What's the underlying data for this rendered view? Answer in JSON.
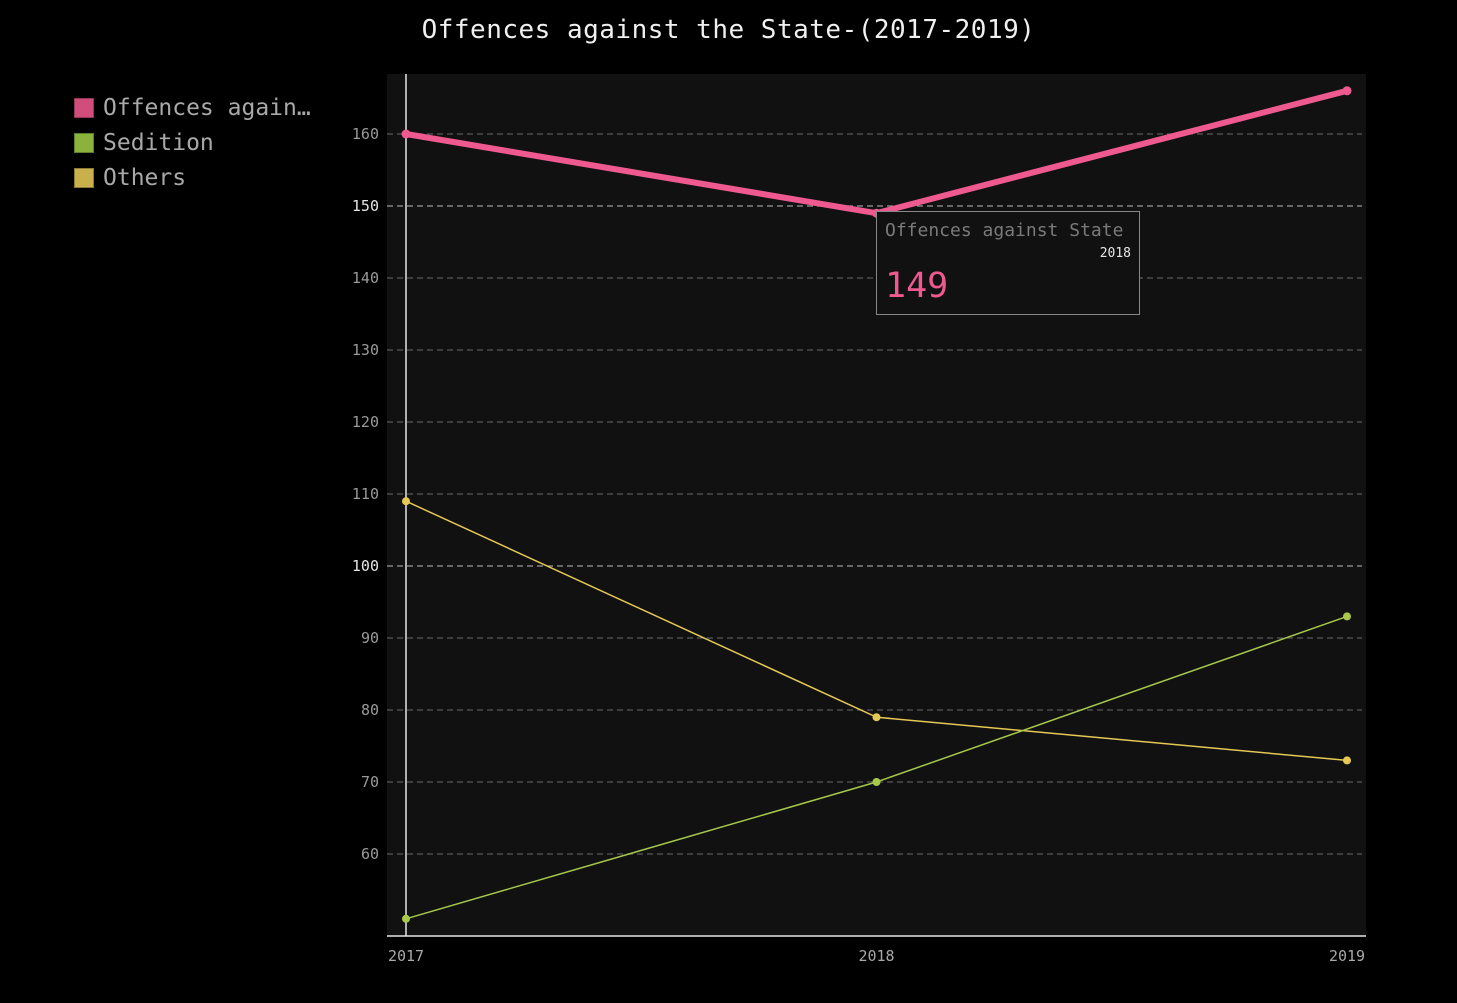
{
  "chart_data": {
    "type": "line",
    "title": "Offences against the State-(2017-2019)",
    "xlabel": "",
    "ylabel": "",
    "categories": [
      "2017",
      "2018",
      "2019"
    ],
    "ylim": [
      50,
      168
    ],
    "yticks": [
      60,
      70,
      80,
      90,
      100,
      110,
      120,
      130,
      140,
      150,
      160
    ],
    "grid": true,
    "legend_position": "left",
    "series": [
      {
        "name": "Offences against State",
        "legend_label": "Offences again…",
        "color": "#ee5a8f",
        "values": [
          160,
          149,
          166
        ]
      },
      {
        "name": "Sedition",
        "legend_label": "Sedition",
        "color": "#a6c84b",
        "values": [
          51,
          70,
          93
        ]
      },
      {
        "name": "Others",
        "legend_label": "Others",
        "color": "#e6c954",
        "values": [
          109,
          79,
          73
        ]
      }
    ]
  },
  "tooltip": {
    "series": "Offences against State",
    "x": "2018",
    "value": "149"
  }
}
